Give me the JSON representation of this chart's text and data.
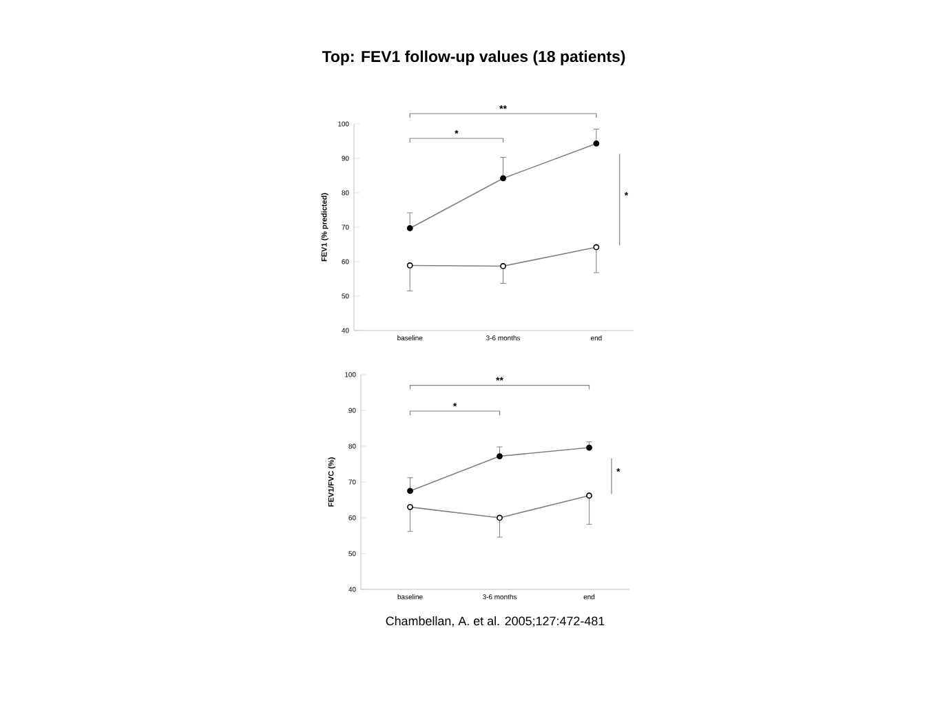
{
  "chart_data": [
    {
      "type": "line",
      "title": "Top: FEV1 follow-up values (18 patients)",
      "ylabel": "FEV1 (% predicted)",
      "categories": [
        "baseline",
        "3-6 months",
        "end"
      ],
      "ylim": [
        40,
        100
      ],
      "yticks": [
        40,
        50,
        60,
        70,
        80,
        90,
        100
      ],
      "marker": "circle",
      "grid": false,
      "series": [
        {
          "color": "#000000",
          "values": [
            69.7,
            84.2,
            94.3
          ],
          "errors": [
            [
              69.7,
              74.2
            ],
            [
              84.2,
              90.3
            ],
            [
              94.3,
              98.5
            ]
          ]
        },
        {
          "color": "#808080",
          "values": [
            58.9,
            58.7,
            64.2
          ],
          "errors": [
            [
              51.5,
              58.9
            ],
            [
              53.7,
              58.7
            ],
            [
              56.8,
              64.2
            ]
          ]
        }
      ],
      "annotations": [
        "**",
        "*",
        "*"
      ]
    },
    {
      "type": "line",
      "ylabel": "FEV1/FVC (%)",
      "categories": [
        "baseline",
        "3-6 months",
        "end"
      ],
      "ylim": [
        40,
        100
      ],
      "yticks": [
        40,
        50,
        60,
        70,
        80,
        90,
        100
      ],
      "marker": "circle",
      "grid": false,
      "series": [
        {
          "color": "#000000",
          "values": [
            67.5,
            77.2,
            79.6
          ],
          "errors": [
            [
              67.5,
              71.2
            ],
            [
              77.2,
              79.8
            ],
            [
              79.6,
              81.2
            ]
          ]
        },
        {
          "color": "#808080",
          "values": [
            63,
            60,
            66.2
          ],
          "errors": [
            [
              56.2,
              63
            ],
            [
              54.6,
              60
            ],
            [
              58.2,
              66.2
            ]
          ]
        }
      ],
      "annotations": [
        "**",
        "*",
        "*",
        "Chambellan, A. et al. 2005;127:472-481"
      ]
    }
  ]
}
